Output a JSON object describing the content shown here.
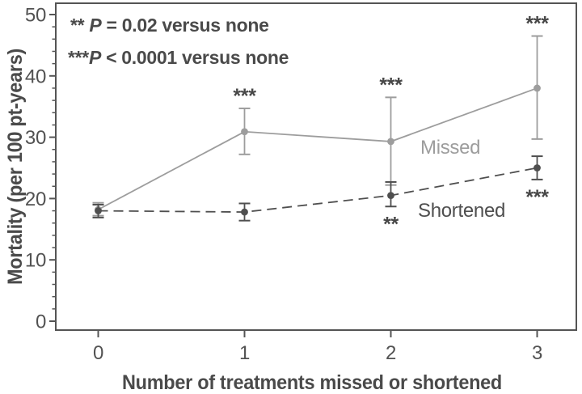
{
  "chart_data": {
    "type": "line",
    "title": "",
    "xlabel": "Number of treatments missed or shortened",
    "ylabel": "Mortality (per 100 pt-years)",
    "x_tick_labels": [
      "0",
      "1",
      "2",
      "3"
    ],
    "x_values": [
      0,
      1,
      2,
      3
    ],
    "y_ticks": [
      0,
      10,
      20,
      30,
      40,
      50
    ],
    "ylim": [
      0,
      50
    ],
    "y_minor_tick_step": 2,
    "grid": false,
    "legend_position": "inline-labels",
    "series": [
      {
        "name": "Missed",
        "line_style": "solid",
        "color": "#9d9d9d",
        "values": [
          18.2,
          30.9,
          29.3,
          38.0
        ],
        "err_low": [
          17.2,
          27.2,
          22.2,
          29.7
        ],
        "err_high": [
          19.3,
          34.7,
          36.5,
          46.5
        ],
        "point_annotations": [
          "",
          "***",
          "***",
          "***"
        ],
        "annotation_side": "above"
      },
      {
        "name": "Shortened",
        "line_style": "dashed",
        "color": "#4f4f4f",
        "values": [
          18.0,
          17.8,
          20.5,
          25.0
        ],
        "err_low": [
          16.9,
          16.4,
          18.7,
          23.1
        ],
        "err_high": [
          19.0,
          19.2,
          22.7,
          26.9
        ],
        "point_annotations": [
          "",
          "",
          "**",
          "***"
        ],
        "annotation_side": "below"
      }
    ],
    "stat_notes": [
      {
        "prefix": "** ",
        "italic": "P",
        "rest": " = 0.02 versus none"
      },
      {
        "prefix": "***",
        "italic": "P",
        "rest": " < 0.0001 versus none"
      }
    ]
  },
  "colors": {
    "background": "#ffffff",
    "frame": "#545454",
    "text": "#4a4a4a",
    "tick_text": "#525252",
    "missed": "#9d9d9d",
    "shortened": "#4f4f4f"
  }
}
